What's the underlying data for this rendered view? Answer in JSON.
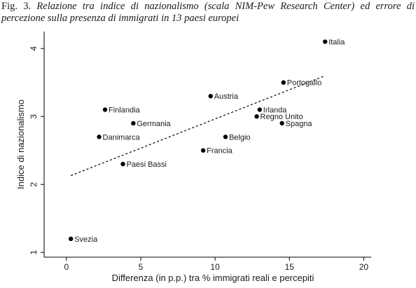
{
  "caption": {
    "label": "Fig. 3.",
    "text": "Relazione tra indice di nazionalismo (scala NIM-Pew Research Center) ed errore di percezione sulla presenza di immigrati in 13 paesi europei"
  },
  "chart_data": {
    "type": "scatter",
    "title": "",
    "xlabel": "Differenza (in p.p.) tra % immigrati reali e percepiti",
    "ylabel": "Indice di nazionalismo",
    "xlim": [
      -1.5,
      20.5
    ],
    "ylim": [
      0.93,
      4.25
    ],
    "xticks": [
      0,
      5,
      10,
      15,
      20
    ],
    "yticks": [
      1,
      2,
      3,
      4
    ],
    "grid": false,
    "colors": {
      "marker": "#000000",
      "trend": "#000000",
      "axis": "#000000"
    },
    "points": [
      {
        "label": "Italia",
        "x": 17.4,
        "y": 4.1
      },
      {
        "label": "Portogallo",
        "x": 14.6,
        "y": 3.5
      },
      {
        "label": "Austria",
        "x": 9.7,
        "y": 3.3
      },
      {
        "label": "Irlanda",
        "x": 13.0,
        "y": 3.1
      },
      {
        "label": "Regno Unito",
        "x": 12.8,
        "y": 3.0
      },
      {
        "label": "Spagna",
        "x": 14.5,
        "y": 2.9
      },
      {
        "label": "Belgio",
        "x": 10.7,
        "y": 2.7
      },
      {
        "label": "Francia",
        "x": 9.2,
        "y": 2.5
      },
      {
        "label": "Finlandia",
        "x": 2.6,
        "y": 3.1
      },
      {
        "label": "Germania",
        "x": 4.5,
        "y": 2.9
      },
      {
        "label": "Danimarca",
        "x": 2.2,
        "y": 2.7
      },
      {
        "label": "Paesi Bassi",
        "x": 3.8,
        "y": 2.3
      },
      {
        "label": "Svezia",
        "x": 0.3,
        "y": 1.2
      }
    ],
    "trendline": {
      "style": "dashed",
      "x": [
        0.3,
        17.4
      ],
      "y": [
        2.13,
        3.6
      ]
    }
  }
}
